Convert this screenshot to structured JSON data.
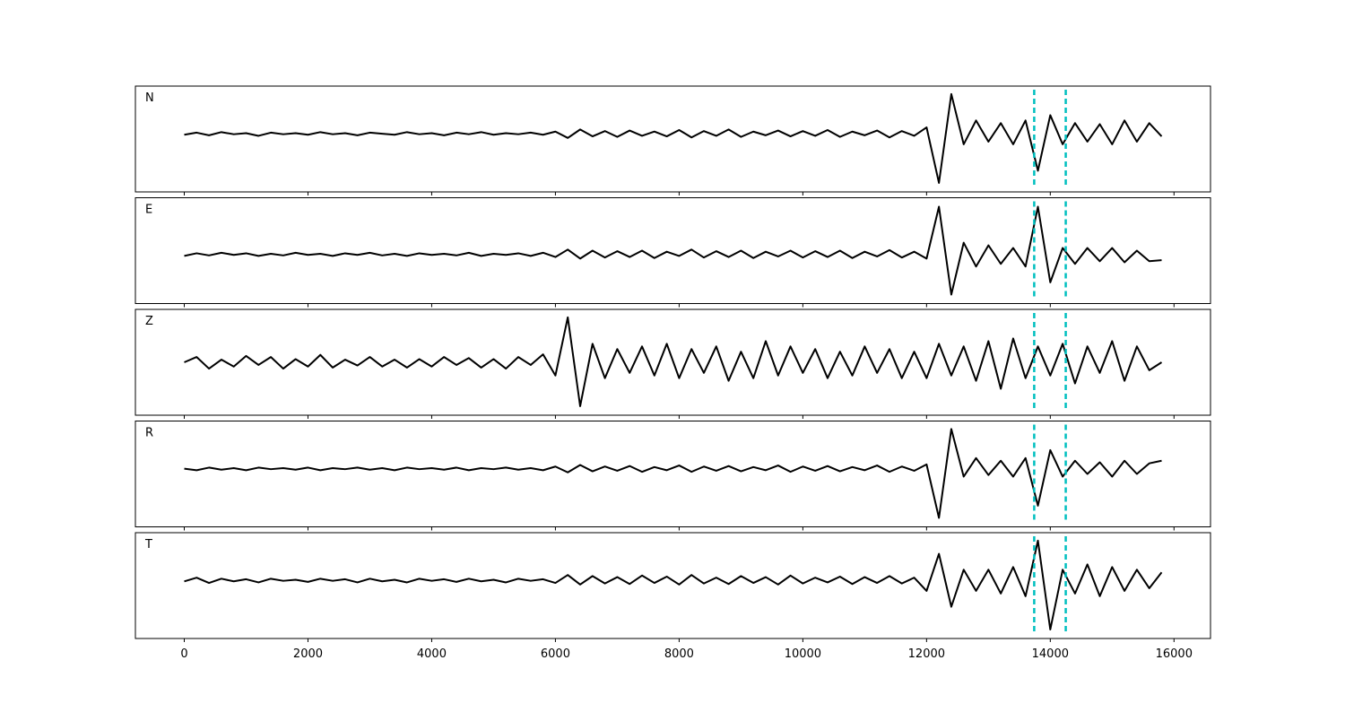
{
  "chart_data": {
    "type": "line",
    "x": [
      0,
      200,
      400,
      600,
      800,
      1000,
      1200,
      1400,
      1600,
      1800,
      2000,
      2200,
      2400,
      2600,
      2800,
      3000,
      3200,
      3400,
      3600,
      3800,
      4000,
      4200,
      4400,
      4600,
      4800,
      5000,
      5200,
      5400,
      5600,
      5800,
      6000,
      6200,
      6400,
      6600,
      6800,
      7000,
      7200,
      7400,
      7600,
      7800,
      8000,
      8200,
      8400,
      8600,
      8800,
      9000,
      9200,
      9400,
      9600,
      9800,
      10000,
      10200,
      10400,
      10600,
      10800,
      11000,
      11200,
      11400,
      11600,
      11800,
      12000,
      12200,
      12400,
      12600,
      12800,
      13000,
      13200,
      13400,
      13600,
      13800,
      14000,
      14200,
      14400,
      14600,
      14800,
      15000,
      15200,
      15400,
      15600,
      15800
    ],
    "xlim": [
      -790,
      16590
    ],
    "xticks": [
      0,
      2000,
      4000,
      6000,
      8000,
      10000,
      12000,
      14000,
      16000
    ],
    "ylim": [
      -1,
      1
    ],
    "markers": [
      13740,
      14250
    ],
    "marker_color": "#00bfbf",
    "series": [
      {
        "name": "N",
        "color": "#000000",
        "values": [
          0.08,
          0.12,
          0.07,
          0.13,
          0.09,
          0.11,
          0.06,
          0.12,
          0.09,
          0.11,
          0.08,
          0.13,
          0.09,
          0.11,
          0.07,
          0.12,
          0.1,
          0.08,
          0.13,
          0.09,
          0.11,
          0.07,
          0.12,
          0.09,
          0.13,
          0.08,
          0.11,
          0.09,
          0.12,
          0.08,
          0.14,
          0.02,
          0.18,
          0.05,
          0.15,
          0.04,
          0.16,
          0.06,
          0.14,
          0.05,
          0.17,
          0.03,
          0.15,
          0.06,
          0.18,
          0.04,
          0.14,
          0.07,
          0.16,
          0.05,
          0.15,
          0.06,
          0.17,
          0.04,
          0.14,
          0.07,
          0.16,
          0.03,
          0.15,
          0.06,
          0.22,
          -0.83,
          0.85,
          -0.1,
          0.35,
          -0.05,
          0.3,
          -0.1,
          0.35,
          -0.6,
          0.45,
          -0.1,
          0.3,
          -0.05,
          0.28,
          -0.1,
          0.35,
          -0.05,
          0.3,
          0.05
        ]
      },
      {
        "name": "E",
        "color": "#000000",
        "values": [
          -0.1,
          -0.05,
          -0.09,
          -0.04,
          -0.08,
          -0.05,
          -0.1,
          -0.06,
          -0.09,
          -0.04,
          -0.08,
          -0.06,
          -0.1,
          -0.05,
          -0.08,
          -0.04,
          -0.09,
          -0.06,
          -0.1,
          -0.05,
          -0.08,
          -0.06,
          -0.09,
          -0.04,
          -0.1,
          -0.06,
          -0.08,
          -0.05,
          -0.1,
          -0.04,
          -0.12,
          0.02,
          -0.15,
          0.0,
          -0.13,
          -0.01,
          -0.12,
          0.0,
          -0.14,
          -0.02,
          -0.1,
          0.02,
          -0.13,
          -0.01,
          -0.12,
          0.0,
          -0.14,
          -0.02,
          -0.11,
          0.0,
          -0.13,
          -0.01,
          -0.12,
          0.0,
          -0.14,
          -0.02,
          -0.11,
          0.01,
          -0.13,
          -0.02,
          -0.15,
          0.83,
          -0.83,
          0.15,
          -0.3,
          0.1,
          -0.25,
          0.05,
          -0.3,
          0.83,
          -0.6,
          0.05,
          -0.25,
          0.05,
          -0.2,
          0.05,
          -0.22,
          0.0,
          -0.2,
          -0.18
        ]
      },
      {
        "name": "Z",
        "color": "#000000",
        "values": [
          0.0,
          0.1,
          -0.12,
          0.05,
          -0.08,
          0.12,
          -0.05,
          0.1,
          -0.12,
          0.06,
          -0.08,
          0.14,
          -0.1,
          0.05,
          -0.06,
          0.1,
          -0.08,
          0.05,
          -0.1,
          0.06,
          -0.08,
          0.1,
          -0.05,
          0.08,
          -0.1,
          0.06,
          -0.12,
          0.1,
          -0.05,
          0.15,
          -0.25,
          0.85,
          -0.83,
          0.35,
          -0.3,
          0.25,
          -0.2,
          0.3,
          -0.25,
          0.35,
          -0.3,
          0.25,
          -0.2,
          0.3,
          -0.35,
          0.2,
          -0.3,
          0.4,
          -0.25,
          0.3,
          -0.2,
          0.25,
          -0.3,
          0.2,
          -0.25,
          0.3,
          -0.2,
          0.25,
          -0.3,
          0.2,
          -0.3,
          0.35,
          -0.25,
          0.3,
          -0.35,
          0.4,
          -0.5,
          0.45,
          -0.3,
          0.3,
          -0.25,
          0.35,
          -0.4,
          0.3,
          -0.2,
          0.4,
          -0.35,
          0.3,
          -0.15,
          0.0
        ]
      },
      {
        "name": "R",
        "color": "#000000",
        "values": [
          0.1,
          0.07,
          0.12,
          0.08,
          0.11,
          0.07,
          0.12,
          0.09,
          0.11,
          0.08,
          0.12,
          0.07,
          0.11,
          0.09,
          0.12,
          0.08,
          0.11,
          0.07,
          0.12,
          0.09,
          0.11,
          0.08,
          0.12,
          0.07,
          0.11,
          0.09,
          0.12,
          0.08,
          0.11,
          0.07,
          0.14,
          0.03,
          0.17,
          0.05,
          0.14,
          0.06,
          0.15,
          0.04,
          0.13,
          0.07,
          0.16,
          0.04,
          0.14,
          0.06,
          0.15,
          0.05,
          0.13,
          0.07,
          0.16,
          0.04,
          0.14,
          0.06,
          0.15,
          0.05,
          0.13,
          0.07,
          0.16,
          0.04,
          0.14,
          0.06,
          0.18,
          -0.83,
          0.85,
          -0.05,
          0.3,
          -0.02,
          0.25,
          -0.05,
          0.3,
          -0.6,
          0.45,
          -0.05,
          0.25,
          0.0,
          0.22,
          -0.05,
          0.25,
          0.0,
          0.2,
          0.25
        ]
      },
      {
        "name": "T",
        "color": "#000000",
        "values": [
          0.08,
          0.15,
          0.05,
          0.13,
          0.08,
          0.12,
          0.06,
          0.13,
          0.09,
          0.11,
          0.07,
          0.13,
          0.09,
          0.12,
          0.06,
          0.13,
          0.08,
          0.11,
          0.06,
          0.13,
          0.09,
          0.12,
          0.07,
          0.13,
          0.08,
          0.11,
          0.06,
          0.13,
          0.09,
          0.12,
          0.05,
          0.2,
          0.02,
          0.18,
          0.04,
          0.16,
          0.03,
          0.19,
          0.05,
          0.17,
          0.02,
          0.2,
          0.04,
          0.15,
          0.03,
          0.18,
          0.05,
          0.16,
          0.02,
          0.19,
          0.04,
          0.15,
          0.06,
          0.17,
          0.03,
          0.16,
          0.05,
          0.18,
          0.04,
          0.15,
          -0.1,
          0.6,
          -0.4,
          0.3,
          -0.1,
          0.3,
          -0.15,
          0.35,
          -0.2,
          0.85,
          -0.83,
          0.3,
          -0.15,
          0.4,
          -0.2,
          0.35,
          -0.1,
          0.3,
          -0.05,
          0.25
        ]
      }
    ]
  }
}
